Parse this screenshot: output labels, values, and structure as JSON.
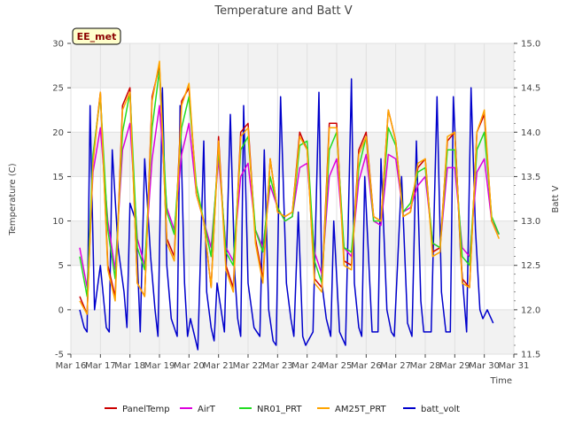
{
  "chart_data": {
    "type": "line",
    "title": "Temperature and Batt V",
    "xlabel": "Time",
    "ylabel": "Temperature (C)",
    "y2label": "Batt V",
    "badge": "EE_met",
    "ylim": [
      -5,
      30
    ],
    "y2lim": [
      11.5,
      15.0
    ],
    "xlim": [
      16,
      31
    ],
    "x_ticks": [
      {
        "v": 16,
        "label": "Mar 16"
      },
      {
        "v": 17,
        "label": "Mar 17"
      },
      {
        "v": 18,
        "label": "Mar 18"
      },
      {
        "v": 19,
        "label": "Mar 19"
      },
      {
        "v": 20,
        "label": "Mar 20"
      },
      {
        "v": 21,
        "label": "Mar 21"
      },
      {
        "v": 22,
        "label": "Mar 22"
      },
      {
        "v": 23,
        "label": "Mar 23"
      },
      {
        "v": 24,
        "label": "Mar 24"
      },
      {
        "v": 25,
        "label": "Mar 25"
      },
      {
        "v": 26,
        "label": "Mar 26"
      },
      {
        "v": 27,
        "label": "Mar 27"
      },
      {
        "v": 28,
        "label": "Mar 28"
      },
      {
        "v": 29,
        "label": "Mar 29"
      },
      {
        "v": 30,
        "label": "Mar 30"
      },
      {
        "v": 31,
        "label": "Mar 31"
      }
    ],
    "y_ticks": [
      {
        "v": -5,
        "label": "-5"
      },
      {
        "v": 0,
        "label": "0"
      },
      {
        "v": 5,
        "label": "5"
      },
      {
        "v": 10,
        "label": "10"
      },
      {
        "v": 15,
        "label": "15"
      },
      {
        "v": 20,
        "label": "20"
      },
      {
        "v": 25,
        "label": "25"
      },
      {
        "v": 30,
        "label": "30"
      }
    ],
    "y2_ticks": [
      {
        "v": 11.5,
        "label": "11.5"
      },
      {
        "v": 12.0,
        "label": "12.0"
      },
      {
        "v": 12.5,
        "label": "12.5"
      },
      {
        "v": 13.0,
        "label": "13.0"
      },
      {
        "v": 13.5,
        "label": "13.5"
      },
      {
        "v": 14.0,
        "label": "14.0"
      },
      {
        "v": 14.5,
        "label": "14.5"
      },
      {
        "v": 15.0,
        "label": "15.0"
      }
    ],
    "grid": true,
    "legend_position": "bottom",
    "series": [
      {
        "name": "PanelTemp",
        "color": "#cc0000",
        "axis": "left",
        "x": [
          16.3,
          16.55,
          16.75,
          17.0,
          17.25,
          17.5,
          17.75,
          18.0,
          18.25,
          18.5,
          18.75,
          19.0,
          19.25,
          19.5,
          19.75,
          20.0,
          20.25,
          20.5,
          20.75,
          21.0,
          21.25,
          21.5,
          21.75,
          22.0,
          22.25,
          22.5,
          22.75,
          23.0,
          23.25,
          23.5,
          23.75,
          24.0,
          24.25,
          24.5,
          24.75,
          25.0,
          25.25,
          25.5,
          25.75,
          26.0,
          26.25,
          26.5,
          26.75,
          27.0,
          27.25,
          27.5,
          27.75,
          28.0,
          28.25,
          28.5,
          28.75,
          29.0,
          29.25,
          29.5,
          29.75,
          30.0,
          30.25,
          30.5
        ],
        "y": [
          1.5,
          -0.5,
          17.0,
          24.5,
          5.0,
          1.5,
          23.0,
          25.0,
          3.0,
          1.5,
          24.0,
          27.5,
          8.0,
          6.0,
          23.5,
          25.0,
          13.0,
          10.0,
          2.5,
          19.5,
          5.0,
          2.5,
          20.0,
          21.0,
          8.0,
          3.5,
          17.0,
          11.0,
          10.5,
          11.0,
          20.0,
          18.0,
          3.5,
          2.5,
          21.0,
          21.0,
          5.5,
          5.0,
          18.0,
          20.0,
          10.5,
          10.0,
          22.5,
          19.0,
          10.5,
          11.0,
          16.0,
          17.0,
          6.5,
          7.0,
          19.0,
          20.0,
          3.5,
          2.5,
          20.0,
          22.0,
          10.0,
          8.5
        ]
      },
      {
        "name": "AirT",
        "color": "#dd00dd",
        "axis": "left",
        "x": [
          16.3,
          16.55,
          16.75,
          17.0,
          17.25,
          17.5,
          17.75,
          18.0,
          18.25,
          18.5,
          18.75,
          19.0,
          19.25,
          19.5,
          19.75,
          20.0,
          20.25,
          20.5,
          20.75,
          21.0,
          21.25,
          21.5,
          21.75,
          22.0,
          22.25,
          22.5,
          22.75,
          23.0,
          23.25,
          23.5,
          23.75,
          24.0,
          24.25,
          24.5,
          24.75,
          25.0,
          25.25,
          25.5,
          25.75,
          26.0,
          26.25,
          26.5,
          26.75,
          27.0,
          27.25,
          27.5,
          27.75,
          28.0,
          28.25,
          28.5,
          28.75,
          29.0,
          29.25,
          29.5,
          29.75,
          30.0,
          30.25,
          30.5
        ],
        "y": [
          7.0,
          2.5,
          15.5,
          20.5,
          10.0,
          4.5,
          18.0,
          21.0,
          8.0,
          5.0,
          17.0,
          23.0,
          11.5,
          9.0,
          17.5,
          21.0,
          13.0,
          10.0,
          7.0,
          17.0,
          7.0,
          5.5,
          15.0,
          16.5,
          9.0,
          7.0,
          14.0,
          11.5,
          10.0,
          10.5,
          16.0,
          16.5,
          6.5,
          4.0,
          15.0,
          17.0,
          7.0,
          6.0,
          14.5,
          17.5,
          10.0,
          9.5,
          17.5,
          17.0,
          11.0,
          11.5,
          14.0,
          15.0,
          7.5,
          7.0,
          16.0,
          16.0,
          7.0,
          6.0,
          15.5,
          17.0,
          10.0,
          8.5
        ]
      },
      {
        "name": "NR01_PRT",
        "color": "#22dd22",
        "axis": "left",
        "x": [
          16.3,
          16.55,
          16.75,
          17.0,
          17.25,
          17.5,
          17.75,
          18.0,
          18.25,
          18.5,
          18.75,
          19.0,
          19.25,
          19.5,
          19.75,
          20.0,
          20.25,
          20.5,
          20.75,
          21.0,
          21.25,
          21.5,
          21.75,
          22.0,
          22.25,
          22.5,
          22.75,
          23.0,
          23.25,
          23.5,
          23.75,
          24.0,
          24.25,
          24.5,
          24.75,
          25.0,
          25.25,
          25.5,
          25.75,
          26.0,
          26.25,
          26.5,
          26.75,
          27.0,
          27.25,
          27.5,
          27.75,
          28.0,
          28.25,
          28.5,
          28.75,
          29.0,
          29.25,
          29.5,
          29.75,
          30.0,
          30.25,
          30.5
        ],
        "y": [
          6.0,
          1.5,
          17.5,
          24.0,
          9.0,
          3.5,
          20.0,
          24.5,
          7.0,
          4.5,
          20.5,
          27.0,
          11.0,
          8.5,
          20.5,
          24.0,
          14.0,
          10.0,
          6.0,
          18.0,
          6.5,
          5.0,
          18.0,
          19.5,
          9.0,
          6.5,
          15.0,
          11.5,
          10.0,
          10.5,
          18.5,
          19.0,
          5.5,
          3.0,
          18.0,
          20.0,
          7.0,
          6.5,
          16.0,
          19.5,
          10.0,
          10.0,
          20.5,
          18.5,
          11.0,
          12.0,
          15.5,
          16.0,
          7.5,
          7.0,
          18.0,
          18.0,
          6.0,
          5.0,
          18.0,
          20.0,
          10.5,
          8.5
        ]
      },
      {
        "name": "AM25T_PRT",
        "color": "#ffa500",
        "axis": "left",
        "x": [
          16.3,
          16.55,
          16.75,
          17.0,
          17.25,
          17.5,
          17.75,
          18.0,
          18.25,
          18.5,
          18.75,
          19.0,
          19.25,
          19.5,
          19.75,
          20.0,
          20.25,
          20.5,
          20.75,
          21.0,
          21.25,
          21.5,
          21.75,
          22.0,
          22.25,
          22.5,
          22.75,
          23.0,
          23.25,
          23.5,
          23.75,
          24.0,
          24.25,
          24.5,
          24.75,
          25.0,
          25.25,
          25.5,
          25.75,
          26.0,
          26.25,
          26.5,
          26.75,
          27.0,
          27.25,
          27.5,
          27.75,
          28.0,
          28.25,
          28.5,
          28.75,
          29.0,
          29.25,
          29.5,
          29.75,
          30.0,
          30.25,
          30.5
        ],
        "y": [
          1.0,
          -0.5,
          16.5,
          24.5,
          4.5,
          1.0,
          22.5,
          24.5,
          3.0,
          1.5,
          23.5,
          28.0,
          7.5,
          5.5,
          23.0,
          25.5,
          13.0,
          10.0,
          2.5,
          19.0,
          4.5,
          2.0,
          19.5,
          20.5,
          7.5,
          3.0,
          17.0,
          11.0,
          10.5,
          11.0,
          19.5,
          18.0,
          3.0,
          2.0,
          20.5,
          20.5,
          5.0,
          4.5,
          17.5,
          19.5,
          10.5,
          10.0,
          22.5,
          19.0,
          10.5,
          11.0,
          16.5,
          17.0,
          6.0,
          6.5,
          19.5,
          20.0,
          3.0,
          2.5,
          20.0,
          22.5,
          10.0,
          8.0
        ]
      },
      {
        "name": "batt_volt",
        "color": "#0000cc",
        "axis": "right",
        "x": [
          16.3,
          16.45,
          16.55,
          16.65,
          16.72,
          16.8,
          17.0,
          17.2,
          17.3,
          17.4,
          17.6,
          17.8,
          17.9,
          18.0,
          18.2,
          18.35,
          18.5,
          18.7,
          18.85,
          18.95,
          19.1,
          19.25,
          19.4,
          19.6,
          19.7,
          19.85,
          19.95,
          20.05,
          20.3,
          20.5,
          20.6,
          20.75,
          20.85,
          20.95,
          21.2,
          21.4,
          21.55,
          21.65,
          21.75,
          21.85,
          22.0,
          22.2,
          22.4,
          22.55,
          22.7,
          22.85,
          22.95,
          23.1,
          23.3,
          23.45,
          23.55,
          23.7,
          23.85,
          23.95,
          24.2,
          24.4,
          24.5,
          24.65,
          24.8,
          24.9,
          25.1,
          25.3,
          25.5,
          25.6,
          25.75,
          25.85,
          25.95,
          26.2,
          26.4,
          26.5,
          26.7,
          26.85,
          26.95,
          27.2,
          27.4,
          27.55,
          27.7,
          27.85,
          27.95,
          28.2,
          28.4,
          28.55,
          28.7,
          28.85,
          28.95,
          29.2,
          29.4,
          29.55,
          29.7,
          29.85,
          29.95,
          30.1,
          30.3
        ],
        "y": [
          12.0,
          11.8,
          11.75,
          14.3,
          13.2,
          12.0,
          12.5,
          11.8,
          11.75,
          13.8,
          12.7,
          12.2,
          11.8,
          13.2,
          13.0,
          11.75,
          13.7,
          12.6,
          12.0,
          11.7,
          14.5,
          12.5,
          11.9,
          11.7,
          14.3,
          12.3,
          11.7,
          11.9,
          11.55,
          13.9,
          12.2,
          11.8,
          11.65,
          12.3,
          11.75,
          14.2,
          12.4,
          11.9,
          11.7,
          14.3,
          12.3,
          11.8,
          11.7,
          13.8,
          12.0,
          11.65,
          11.6,
          14.4,
          12.3,
          11.9,
          11.7,
          13.1,
          11.7,
          11.6,
          11.75,
          14.45,
          12.3,
          11.9,
          11.7,
          13.0,
          11.75,
          11.6,
          14.6,
          12.3,
          11.8,
          11.7,
          13.5,
          11.75,
          11.75,
          13.7,
          12.0,
          11.75,
          11.7,
          13.5,
          11.85,
          11.7,
          13.9,
          12.1,
          11.75,
          11.75,
          14.4,
          12.2,
          11.75,
          11.75,
          14.4,
          12.6,
          11.75,
          14.5,
          12.9,
          12.0,
          11.9,
          12.0,
          11.85
        ]
      }
    ]
  }
}
